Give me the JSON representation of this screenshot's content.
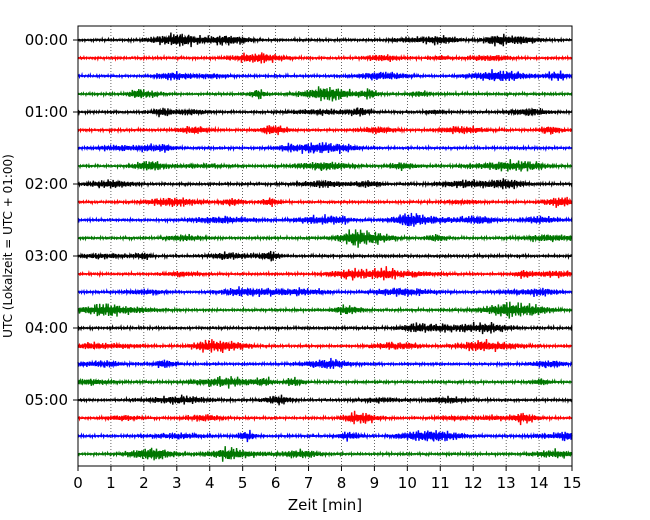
{
  "chart_data": {
    "type": "line",
    "title": "",
    "xlabel": "Zeit  [min]",
    "ylabel": "UTC (Lokalzeit = UTC + 01:00)",
    "xlim": [
      0,
      15
    ],
    "x_ticks": [
      0,
      1,
      2,
      3,
      4,
      5,
      6,
      7,
      8,
      9,
      10,
      11,
      12,
      13,
      14,
      15
    ],
    "x_tick_labels": [
      "0",
      "1",
      "2",
      "3",
      "4",
      "5",
      "6",
      "7",
      "8",
      "9",
      "10",
      "11",
      "12",
      "13",
      "14",
      "15"
    ],
    "y_tick_labels": [
      "00:00",
      "01:00",
      "02:00",
      "03:00",
      "04:00",
      "05:00"
    ],
    "trace_interval_min": 15,
    "trace_count": 24,
    "trace_colors": [
      "#000000",
      "#ff0000",
      "#0000ff",
      "#007700"
    ],
    "grid": "x-dotted",
    "legend": "none"
  }
}
